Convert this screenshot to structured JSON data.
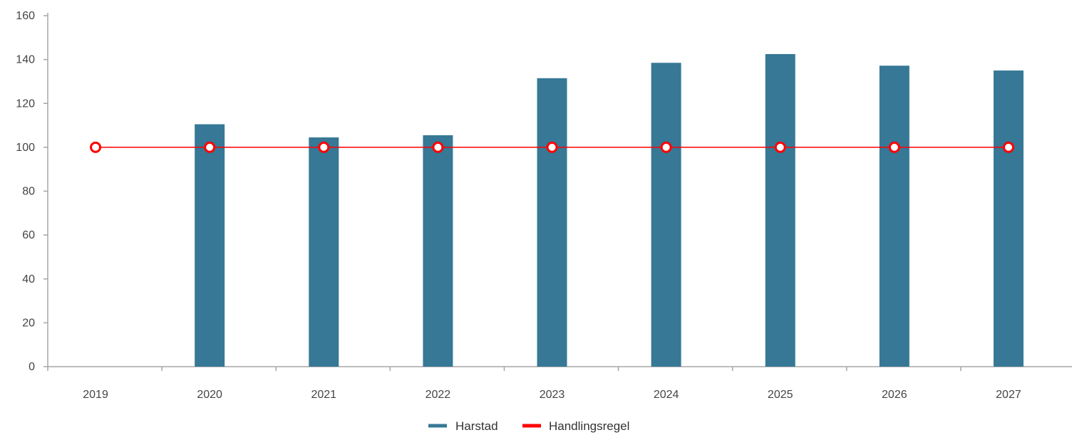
{
  "chart_data": {
    "type": "bar",
    "title": "",
    "xlabel": "",
    "ylabel": "",
    "categories": [
      "2019",
      "2020",
      "2021",
      "2022",
      "2023",
      "2024",
      "2025",
      "2026",
      "2027"
    ],
    "ylim": [
      0,
      160
    ],
    "yticks": [
      0,
      20,
      40,
      60,
      80,
      100,
      120,
      140,
      160
    ],
    "grid": false,
    "legend_position": "bottom-center",
    "series": [
      {
        "name": "Harstad",
        "type": "bar",
        "color": "#367896",
        "values": [
          null,
          110.5,
          104.5,
          105.5,
          131.5,
          138.5,
          142.5,
          137.2,
          135
        ]
      },
      {
        "name": "Handlingsregel",
        "type": "line",
        "color": "#ff0000",
        "marker": "open-circle",
        "values": [
          100,
          100,
          100,
          100,
          100,
          100,
          100,
          100,
          100
        ]
      }
    ]
  }
}
